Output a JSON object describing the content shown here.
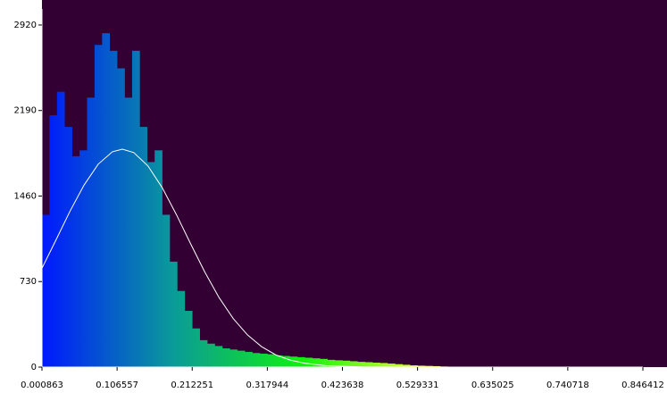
{
  "chart_data": {
    "type": "histogram",
    "bins": [
      0.000863,
      0.011432,
      0.022002,
      0.032571,
      0.04314,
      0.05371,
      0.064279,
      0.074849,
      0.085418,
      0.095987,
      0.106557,
      0.117126,
      0.127696,
      0.138265,
      0.148834,
      0.159404,
      0.169973,
      0.180543,
      0.191112,
      0.201681,
      0.212251,
      0.22282,
      0.23339,
      0.243959,
      0.254528,
      0.265098,
      0.275667,
      0.286237,
      0.296806,
      0.307375,
      0.317944,
      0.328513,
      0.339083,
      0.349652,
      0.360221,
      0.370791,
      0.38136,
      0.39193,
      0.402499,
      0.413068,
      0.423638,
      0.434207,
      0.444777,
      0.455346,
      0.465915,
      0.476485,
      0.487054,
      0.497624,
      0.508193,
      0.518762,
      0.529331,
      0.5399,
      0.55047,
      0.561039,
      0.571608,
      0.582178,
      0.592747,
      0.603317,
      0.613886,
      0.624455,
      0.635025,
      0.645594,
      0.656164,
      0.666733,
      0.677302,
      0.687872,
      0.698441,
      0.709011,
      0.71958,
      0.730149,
      0.740718,
      0.751287,
      0.761857,
      0.772426,
      0.782995,
      0.793565,
      0.804134,
      0.814704,
      0.825273,
      0.835842,
      0.846412
    ],
    "values": [
      1300,
      2150,
      2350,
      2050,
      1800,
      1850,
      2300,
      2750,
      2850,
      2700,
      2550,
      2300,
      2700,
      2050,
      1750,
      1850,
      1300,
      900,
      650,
      480,
      330,
      230,
      200,
      180,
      160,
      150,
      140,
      130,
      120,
      115,
      110,
      100,
      95,
      90,
      85,
      80,
      75,
      70,
      62,
      58,
      55,
      50,
      45,
      42,
      38,
      35,
      30,
      25,
      20,
      15,
      12,
      10,
      8,
      5,
      3,
      0,
      0,
      0,
      0,
      0,
      0,
      0,
      0,
      0,
      0,
      0,
      0,
      0,
      0,
      0,
      0,
      0,
      0,
      0,
      0,
      0,
      0,
      0,
      0,
      0
    ],
    "gradient_colors": [
      "#0018ff",
      "#0a9a9a",
      "#10f010",
      "#ffff30"
    ],
    "fit": {
      "color": "#ffffff",
      "x": [
        0.000863,
        0.02,
        0.04,
        0.06,
        0.08,
        0.1,
        0.114,
        0.13,
        0.15,
        0.17,
        0.19,
        0.21,
        0.23,
        0.25,
        0.27,
        0.29,
        0.31,
        0.33,
        0.35,
        0.37,
        0.4,
        0.45,
        0.5,
        0.846412
      ],
      "values": [
        844,
        1078,
        1327,
        1553,
        1732,
        1838,
        1860,
        1831,
        1717,
        1532,
        1302,
        1053,
        811,
        594,
        414,
        275,
        174,
        104,
        60,
        33,
        12,
        2,
        0,
        0
      ]
    },
    "background": "#330033",
    "xlim": [
      0.000863,
      0.846412
    ],
    "xticks": [
      0.000863,
      0.106557,
      0.212251,
      0.317944,
      0.423638,
      0.529331,
      0.635025,
      0.740718,
      0.846412
    ],
    "ylim": [
      0,
      3057
    ],
    "yticks": [
      0,
      730,
      1460,
      2190,
      2920
    ]
  }
}
